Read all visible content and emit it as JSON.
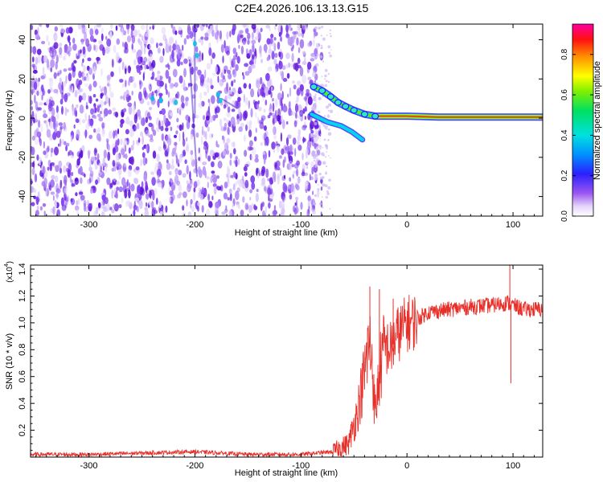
{
  "title": "C2E4.2026.106.13.13.G15",
  "colors": {
    "snr_line": "#e8302a",
    "spectrogram_noise": "#7a35e6",
    "axis": "#000000",
    "ridge": "#e8302a"
  },
  "chart_data": [
    {
      "type": "heatmap",
      "name": "spectrogram",
      "xlabel": "Height of straight line (km)",
      "ylabel": "Frequency (Hz)",
      "xlim": [
        -355,
        128
      ],
      "ylim": [
        -50,
        48
      ],
      "xticks": [
        -300,
        -200,
        -100,
        0,
        100
      ],
      "xtick_labels": [
        "-300",
        "-200",
        "-100",
        "0",
        "100"
      ],
      "yticks": [
        -40,
        -20,
        0,
        20,
        40
      ],
      "ytick_labels": [
        "-40",
        "-20",
        "0",
        "20",
        "40"
      ],
      "noise_region_x": [
        -355,
        -88
      ],
      "signal_ridge": [
        {
          "x": -88,
          "y": 16
        },
        {
          "x": -80,
          "y": 14
        },
        {
          "x": -72,
          "y": 11
        },
        {
          "x": -65,
          "y": 8
        },
        {
          "x": -58,
          "y": 6
        },
        {
          "x": -50,
          "y": 4
        },
        {
          "x": -40,
          "y": 2
        },
        {
          "x": -30,
          "y": 1
        },
        {
          "x": -15,
          "y": 1
        },
        {
          "x": 0,
          "y": 1
        },
        {
          "x": 30,
          "y": 0.5
        },
        {
          "x": 60,
          "y": 0.5
        },
        {
          "x": 100,
          "y": 0.5
        },
        {
          "x": 128,
          "y": 0.5
        }
      ],
      "secondary_ridge": [
        {
          "x": -90,
          "y": 2
        },
        {
          "x": -75,
          "y": -2
        },
        {
          "x": -62,
          "y": -4
        },
        {
          "x": -52,
          "y": -7
        },
        {
          "x": -42,
          "y": -11
        }
      ],
      "colorbar": {
        "label": "Normalized spectral amplitude",
        "ticks": [
          0.0,
          0.2,
          0.4,
          0.6,
          0.8
        ],
        "tick_labels": [
          "0.0",
          "0.2",
          "0.4",
          "0.6",
          "0.8"
        ],
        "range": [
          0.0,
          0.95
        ]
      }
    },
    {
      "type": "line",
      "name": "snr",
      "xlabel": "Height of straight line (km)",
      "ylabel": "SNR (10 * v/v)",
      "y_multiplier": "(x10",
      "y_multiplier_exp": "4",
      "xlim": [
        -355,
        128
      ],
      "ylim": [
        0,
        1.43
      ],
      "xticks": [
        -300,
        -200,
        -100,
        0,
        100
      ],
      "xtick_labels": [
        "-300",
        "-200",
        "-100",
        "0",
        "100"
      ],
      "yticks": [
        0.2,
        0.4,
        0.6,
        0.8,
        1.0,
        1.2,
        1.4
      ],
      "ytick_labels": [
        "0.2",
        "0.4",
        "0.6",
        "0.8",
        "1.0",
        "1.2",
        "1.4"
      ],
      "series": [
        {
          "name": "SNR",
          "x": [
            -355,
            -300,
            -250,
            -200,
            -150,
            -100,
            -70,
            -55,
            -48,
            -44,
            -40,
            -36,
            -33,
            -30,
            -27,
            -24,
            -20,
            -15,
            -10,
            -5,
            0,
            5,
            10,
            20,
            40,
            60,
            80,
            95,
            100,
            110,
            128
          ],
          "y": [
            0.02,
            0.02,
            0.03,
            0.04,
            0.02,
            0.02,
            0.04,
            0.1,
            0.3,
            0.45,
            0.62,
            0.85,
            0.75,
            0.3,
            0.55,
            0.72,
            0.82,
            0.8,
            0.9,
            0.95,
            1.0,
            1.0,
            1.03,
            1.08,
            1.1,
            1.12,
            1.13,
            1.15,
            1.13,
            1.1,
            1.1
          ]
        }
      ],
      "spikes": [
        {
          "x": -35,
          "y": 1.27
        },
        {
          "x": -26,
          "y": 1.25
        },
        {
          "x": -13,
          "y": 1.18
        },
        {
          "x": 97,
          "y": 1.43
        },
        {
          "x": 98,
          "y": 0.55
        }
      ]
    }
  ]
}
